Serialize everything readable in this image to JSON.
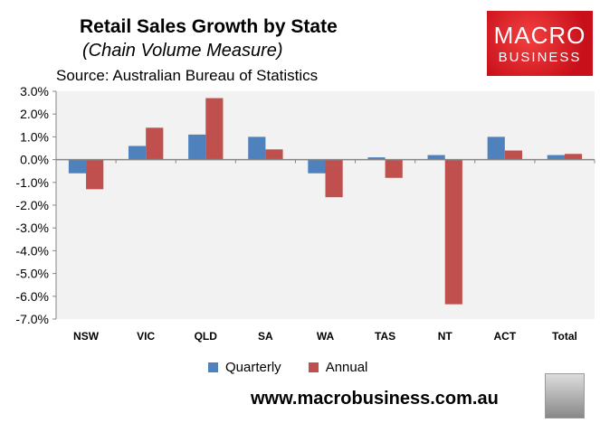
{
  "header": {
    "title": "Retail Sales Growth by State",
    "subtitle": "(Chain Volume Measure)",
    "source": "Source: Australian Bureau of Statistics"
  },
  "logo": {
    "line1": "MACRO",
    "line2": "BUSINESS"
  },
  "footer": {
    "url": "www.macrobusiness.com.au"
  },
  "chart_data": {
    "type": "bar",
    "categories": [
      "NSW",
      "VIC",
      "QLD",
      "SA",
      "WA",
      "TAS",
      "NT",
      "ACT",
      "Total"
    ],
    "series": [
      {
        "name": "Quarterly",
        "color": "#4f81bd",
        "values": [
          -0.6,
          0.6,
          1.1,
          1.0,
          -0.6,
          0.1,
          0.2,
          1.0,
          0.2
        ]
      },
      {
        "name": "Annual",
        "color": "#c0504d",
        "values": [
          -1.3,
          1.4,
          2.7,
          0.45,
          -1.65,
          -0.8,
          -6.35,
          0.4,
          0.25
        ]
      }
    ],
    "ylim": [
      -7,
      3
    ],
    "yticks": [
      "3.0%",
      "2.0%",
      "1.0%",
      "0.0%",
      "-1.0%",
      "-2.0%",
      "-3.0%",
      "-4.0%",
      "-5.0%",
      "-6.0%",
      "-7.0%"
    ],
    "grid": false,
    "legend": "bottom"
  }
}
